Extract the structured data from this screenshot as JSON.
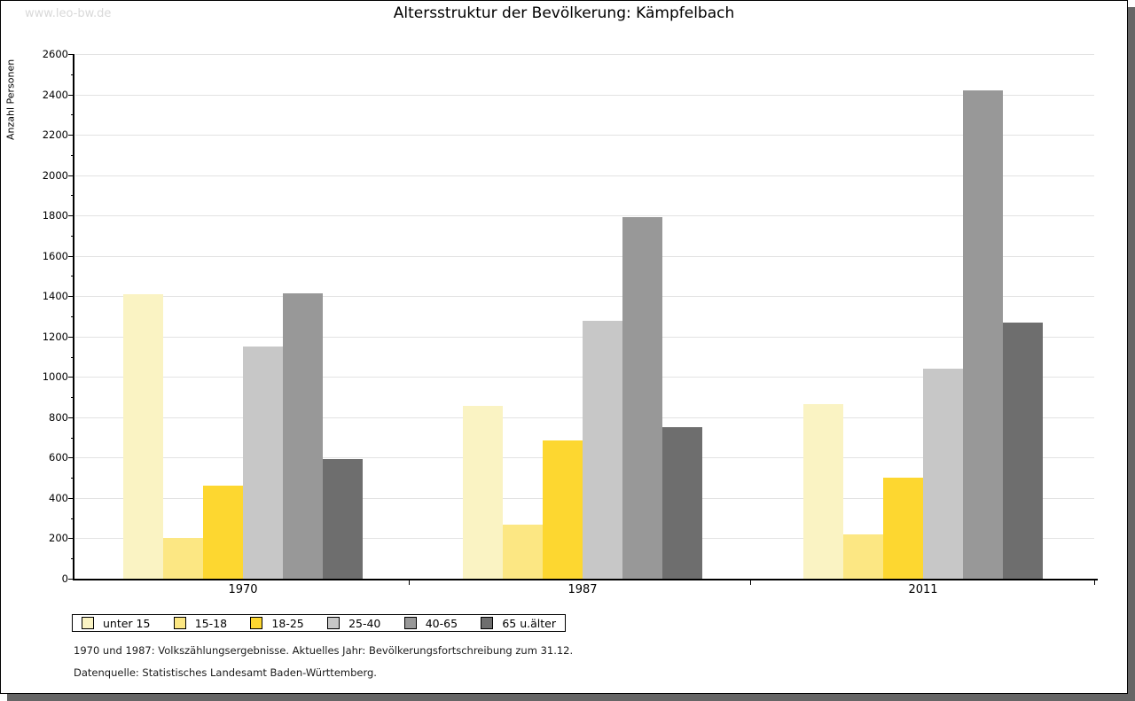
{
  "page": {
    "watermark": "www.leo-bw.de",
    "title": "Altersstruktur der Bevölkerung: Kämpfelbach",
    "footnote1": "1970 und 1987: Volkszählungsergebnisse. Aktuelles Jahr: Bevölkerungsfortschreibung zum 31.12.",
    "footnote2": "Datenquelle: Statistisches Landesamt Baden-Württemberg."
  },
  "colors": {
    "shadow": "#666666",
    "gridline": "#e3e3e3",
    "watermark": "#d9d9d9"
  },
  "chart_data": {
    "type": "bar",
    "title": "Altersstruktur der Bevölkerung: Kämpfelbach",
    "xlabel": "",
    "ylabel": "Anzahl Personen",
    "categories": [
      "1970",
      "1987",
      "2011"
    ],
    "series": [
      {
        "name": "unter 15",
        "color": "#FAF3C3",
        "values": [
          1410,
          855,
          865
        ]
      },
      {
        "name": "15-18",
        "color": "#FCE783",
        "values": [
          200,
          270,
          220
        ]
      },
      {
        "name": "18-25",
        "color": "#FDD730",
        "values": [
          460,
          685,
          500
        ]
      },
      {
        "name": "25-40",
        "color": "#C7C7C7",
        "values": [
          1150,
          1280,
          1040
        ]
      },
      {
        "name": "40-65",
        "color": "#989898",
        "values": [
          1415,
          1790,
          2420
        ]
      },
      {
        "name": "65 u.älter",
        "color": "#6E6E6E",
        "values": [
          595,
          750,
          1270
        ]
      }
    ],
    "ylim": [
      0,
      2600
    ],
    "ytick_major_step": 200,
    "ytick_minor_step": 100,
    "grid": true,
    "legend_position": "bottom"
  }
}
